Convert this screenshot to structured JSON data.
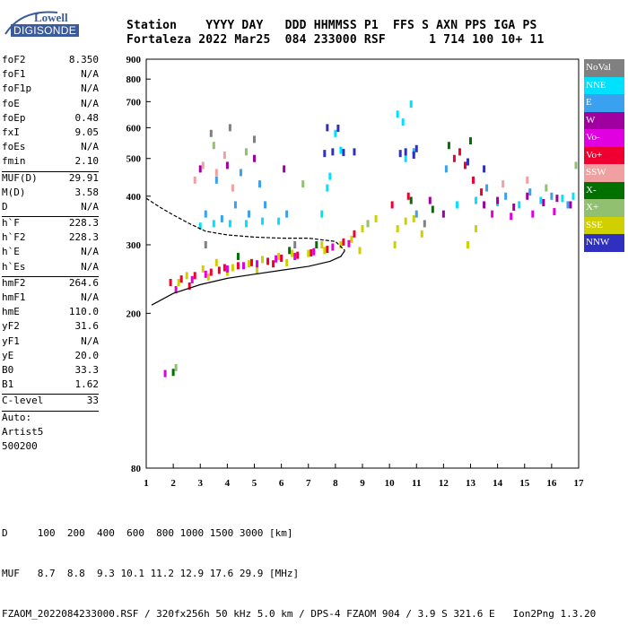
{
  "logo": {
    "top_text": "Lowell",
    "bottom_text": "DIGISONDE"
  },
  "header": {
    "line1": "Station    YYYY DAY   DDD HHMMSS P1  FFS S AXN PPS IGA PS",
    "line2": "Fortaleza 2022 Mar25  084 233000 RSF      1 714 100 10+ 11"
  },
  "params": [
    {
      "label": "foF2",
      "value": "8.350"
    },
    {
      "label": "foF1",
      "value": "N/A"
    },
    {
      "label": "foF1p",
      "value": "N/A"
    },
    {
      "label": "foE",
      "value": "N/A"
    },
    {
      "label": "foEp",
      "value": "0.48"
    },
    {
      "label": "fxI",
      "value": "9.05"
    },
    {
      "label": "foEs",
      "value": "N/A"
    },
    {
      "label": "fmin",
      "value": "2.10"
    },
    {
      "sep": true
    },
    {
      "label": "MUF(D)",
      "value": "29.91"
    },
    {
      "label": "M(D)",
      "value": "3.58"
    },
    {
      "label": "D",
      "value": "N/A"
    },
    {
      "sep": true
    },
    {
      "label": "h`F",
      "value": "228.3"
    },
    {
      "label": "h`F2",
      "value": "228.3"
    },
    {
      "label": "h`E",
      "value": "N/A"
    },
    {
      "label": "h`Es",
      "value": "N/A"
    },
    {
      "sep": true
    },
    {
      "label": "hmF2",
      "value": "264.6"
    },
    {
      "label": "hmF1",
      "value": "N/A"
    },
    {
      "label": "hmE",
      "value": "110.0"
    },
    {
      "label": "yF2",
      "value": "31.6"
    },
    {
      "label": "yF1",
      "value": "N/A"
    },
    {
      "label": "yE",
      "value": "20.0"
    },
    {
      "label": "B0",
      "value": "33.3"
    },
    {
      "label": "B1",
      "value": "1.62"
    },
    {
      "sep": true
    },
    {
      "label": "C-level",
      "value": "33"
    },
    {
      "sep": true
    },
    {
      "text": "Auto:"
    },
    {
      "text": "Artist5"
    },
    {
      "text": "500200"
    }
  ],
  "legend": [
    {
      "label": "NoVal",
      "color": "#808080"
    },
    {
      "label": "NNE",
      "color": "#00e0ff"
    },
    {
      "label": "E",
      "color": "#3aa0f0"
    },
    {
      "label": "W",
      "color": "#a000a0"
    },
    {
      "label": "Vo-",
      "color": "#e000e0"
    },
    {
      "label": "Vo+",
      "color": "#f00030"
    },
    {
      "label": "SSW",
      "color": "#f0a0a0"
    },
    {
      "label": "X-",
      "color": "#007000"
    },
    {
      "label": "X+",
      "color": "#90c070"
    },
    {
      "label": "SSE",
      "color": "#d0d000"
    },
    {
      "label": "NNW",
      "color": "#3030c0"
    }
  ],
  "bottom": {
    "line1": "D     100  200  400  600  800 1000 1500 3000 [km]",
    "line2": "MUF   8.7  8.8  9.3 10.1 11.2 12.9 17.6 29.9 [MHz]",
    "line3": "FZAOM_2022084233000.RSF / 320fx256h 50 kHz 5.0 km / DPS-4 FZAOM 904 / 3.9 S 321.6 E   Ion2Png 1.3.20"
  },
  "chart_data": {
    "type": "scatter",
    "title": "",
    "xlabel": "",
    "ylabel": "",
    "x_ticks": [
      1,
      2,
      3,
      4,
      5,
      6,
      7,
      8,
      9,
      10,
      11,
      12,
      13,
      14,
      15,
      16,
      17
    ],
    "y_ticks": [
      80,
      200,
      300,
      400,
      500,
      600,
      700,
      800,
      900
    ],
    "xlim": [
      1,
      17
    ],
    "ylim": [
      80,
      900
    ],
    "y_scale": "log",
    "grid": false,
    "legend_position": "right",
    "series": [
      {
        "name": "SSE",
        "color": "#d0d000",
        "points": [
          [
            2.2,
            240
          ],
          [
            2.5,
            250
          ],
          [
            3.1,
            260
          ],
          [
            3.6,
            270
          ],
          [
            4.2,
            262
          ],
          [
            4.8,
            268
          ],
          [
            5.3,
            275
          ],
          [
            5.9,
            280
          ],
          [
            6.4,
            285
          ],
          [
            7.0,
            285
          ],
          [
            7.6,
            290
          ],
          [
            8.2,
            300
          ],
          [
            8.6,
            310
          ],
          [
            9.0,
            330
          ],
          [
            10.3,
            330
          ],
          [
            10.6,
            345
          ],
          [
            10.9,
            350
          ],
          [
            12.9,
            300
          ],
          [
            13.2,
            330
          ],
          [
            7.5,
            300
          ],
          [
            6.2,
            270
          ],
          [
            5.1,
            258
          ],
          [
            3.3,
            248
          ],
          [
            4.0,
            255
          ],
          [
            8.9,
            290
          ],
          [
            10.2,
            300
          ],
          [
            11.2,
            320
          ],
          [
            9.5,
            350
          ]
        ]
      },
      {
        "name": "Vo+",
        "color": "#f00030",
        "points": [
          [
            1.9,
            240
          ],
          [
            2.3,
            245
          ],
          [
            2.8,
            250
          ],
          [
            3.4,
            255
          ],
          [
            3.9,
            262
          ],
          [
            4.4,
            265
          ],
          [
            4.9,
            270
          ],
          [
            5.5,
            272
          ],
          [
            6.0,
            277
          ],
          [
            6.6,
            282
          ],
          [
            7.1,
            286
          ],
          [
            7.7,
            292
          ],
          [
            8.3,
            305
          ],
          [
            8.7,
            320
          ],
          [
            12.4,
            500
          ],
          [
            12.6,
            520
          ],
          [
            12.8,
            480
          ],
          [
            13.1,
            440
          ],
          [
            13.4,
            410
          ],
          [
            10.1,
            380
          ],
          [
            10.7,
            400
          ],
          [
            2.6,
            235
          ],
          [
            3.7,
            258
          ],
          [
            5.7,
            268
          ]
        ]
      },
      {
        "name": "NNE",
        "color": "#00e0ff",
        "points": [
          [
            3.0,
            335
          ],
          [
            3.5,
            340
          ],
          [
            4.1,
            340
          ],
          [
            4.7,
            340
          ],
          [
            5.3,
            345
          ],
          [
            5.9,
            345
          ],
          [
            7.5,
            360
          ],
          [
            7.7,
            420
          ],
          [
            7.8,
            450
          ],
          [
            8.0,
            580
          ],
          [
            8.2,
            525
          ],
          [
            10.3,
            650
          ],
          [
            10.5,
            620
          ],
          [
            10.8,
            690
          ],
          [
            10.6,
            500
          ],
          [
            12.5,
            380
          ],
          [
            13.2,
            390
          ],
          [
            14.0,
            385
          ],
          [
            14.8,
            380
          ],
          [
            15.6,
            390
          ],
          [
            16.4,
            395
          ],
          [
            16.8,
            400
          ]
        ]
      },
      {
        "name": "E",
        "color": "#3aa0f0",
        "points": [
          [
            3.2,
            360
          ],
          [
            3.8,
            350
          ],
          [
            4.3,
            380
          ],
          [
            4.8,
            360
          ],
          [
            5.4,
            380
          ],
          [
            6.2,
            360
          ],
          [
            3.6,
            440
          ],
          [
            4.5,
            460
          ],
          [
            5.2,
            430
          ],
          [
            13.6,
            420
          ],
          [
            14.3,
            400
          ],
          [
            15.2,
            410
          ],
          [
            16.0,
            400
          ],
          [
            16.6,
            380
          ],
          [
            12.1,
            470
          ],
          [
            11.0,
            360
          ],
          [
            10.9,
            520
          ]
        ]
      },
      {
        "name": "NNW",
        "color": "#3030c0",
        "points": [
          [
            7.6,
            515
          ],
          [
            7.9,
            520
          ],
          [
            8.3,
            518
          ],
          [
            8.7,
            520
          ],
          [
            10.4,
            515
          ],
          [
            10.6,
            520
          ],
          [
            10.9,
            510
          ],
          [
            7.7,
            600
          ],
          [
            8.1,
            598
          ],
          [
            11.0,
            530
          ],
          [
            12.9,
            490
          ],
          [
            13.5,
            470
          ]
        ]
      },
      {
        "name": "W",
        "color": "#a000a0",
        "points": [
          [
            13.5,
            380
          ],
          [
            14.0,
            390
          ],
          [
            14.6,
            375
          ],
          [
            15.1,
            400
          ],
          [
            15.7,
            385
          ],
          [
            16.2,
            395
          ],
          [
            16.7,
            380
          ],
          [
            3.0,
            470
          ],
          [
            4.0,
            480
          ],
          [
            5.0,
            500
          ],
          [
            6.1,
            470
          ],
          [
            11.5,
            390
          ],
          [
            12.0,
            360
          ]
        ]
      },
      {
        "name": "Vo-",
        "color": "#e000e0",
        "points": [
          [
            2.1,
            230
          ],
          [
            2.7,
            244
          ],
          [
            3.2,
            252
          ],
          [
            4.0,
            260
          ],
          [
            4.6,
            265
          ],
          [
            5.1,
            268
          ],
          [
            5.8,
            276
          ],
          [
            6.5,
            280
          ],
          [
            7.2,
            288
          ],
          [
            7.9,
            296
          ],
          [
            8.5,
            302
          ],
          [
            13.8,
            360
          ],
          [
            14.5,
            355
          ],
          [
            15.3,
            360
          ],
          [
            16.1,
            365
          ],
          [
            1.7,
            140
          ]
        ]
      },
      {
        "name": "SSW",
        "color": "#f0a0a0",
        "points": [
          [
            3.1,
            480
          ],
          [
            3.6,
            460
          ],
          [
            3.9,
            510
          ],
          [
            2.8,
            440
          ],
          [
            4.2,
            420
          ],
          [
            14.2,
            430
          ],
          [
            15.1,
            440
          ]
        ]
      },
      {
        "name": "X-",
        "color": "#007000",
        "points": [
          [
            2.0,
            141
          ],
          [
            4.4,
            280
          ],
          [
            6.3,
            290
          ],
          [
            7.3,
            300
          ],
          [
            10.8,
            390
          ],
          [
            11.6,
            370
          ],
          [
            12.2,
            540
          ],
          [
            13.0,
            555
          ]
        ]
      },
      {
        "name": "X+",
        "color": "#90c070",
        "points": [
          [
            2.1,
            145
          ],
          [
            3.5,
            540
          ],
          [
            4.7,
            520
          ],
          [
            6.8,
            430
          ],
          [
            9.2,
            340
          ],
          [
            15.8,
            420
          ],
          [
            16.9,
            480
          ]
        ]
      },
      {
        "name": "NoVal",
        "color": "#808080",
        "points": [
          [
            3.4,
            580
          ],
          [
            4.1,
            600
          ],
          [
            5.0,
            560
          ],
          [
            3.2,
            300
          ],
          [
            6.5,
            300
          ],
          [
            11.3,
            340
          ]
        ]
      }
    ],
    "profile_curve": {
      "color": "#000000",
      "points": [
        [
          1.2,
          210
        ],
        [
          2.0,
          225
        ],
        [
          3.0,
          237
        ],
        [
          4.0,
          246
        ],
        [
          5.0,
          252
        ],
        [
          6.0,
          258
        ],
        [
          7.0,
          264
        ],
        [
          7.8,
          272
        ],
        [
          8.2,
          280
        ],
        [
          8.35,
          290
        ]
      ]
    },
    "upper_curve": {
      "color": "#000000",
      "points": [
        [
          1.0,
          395
        ],
        [
          1.5,
          375
        ],
        [
          2.0,
          358
        ],
        [
          2.6,
          340
        ],
        [
          3.2,
          325
        ],
        [
          4.0,
          318
        ],
        [
          5.0,
          314
        ],
        [
          6.0,
          312
        ],
        [
          7.0,
          312
        ],
        [
          8.0,
          306
        ],
        [
          8.35,
          290
        ]
      ]
    }
  }
}
